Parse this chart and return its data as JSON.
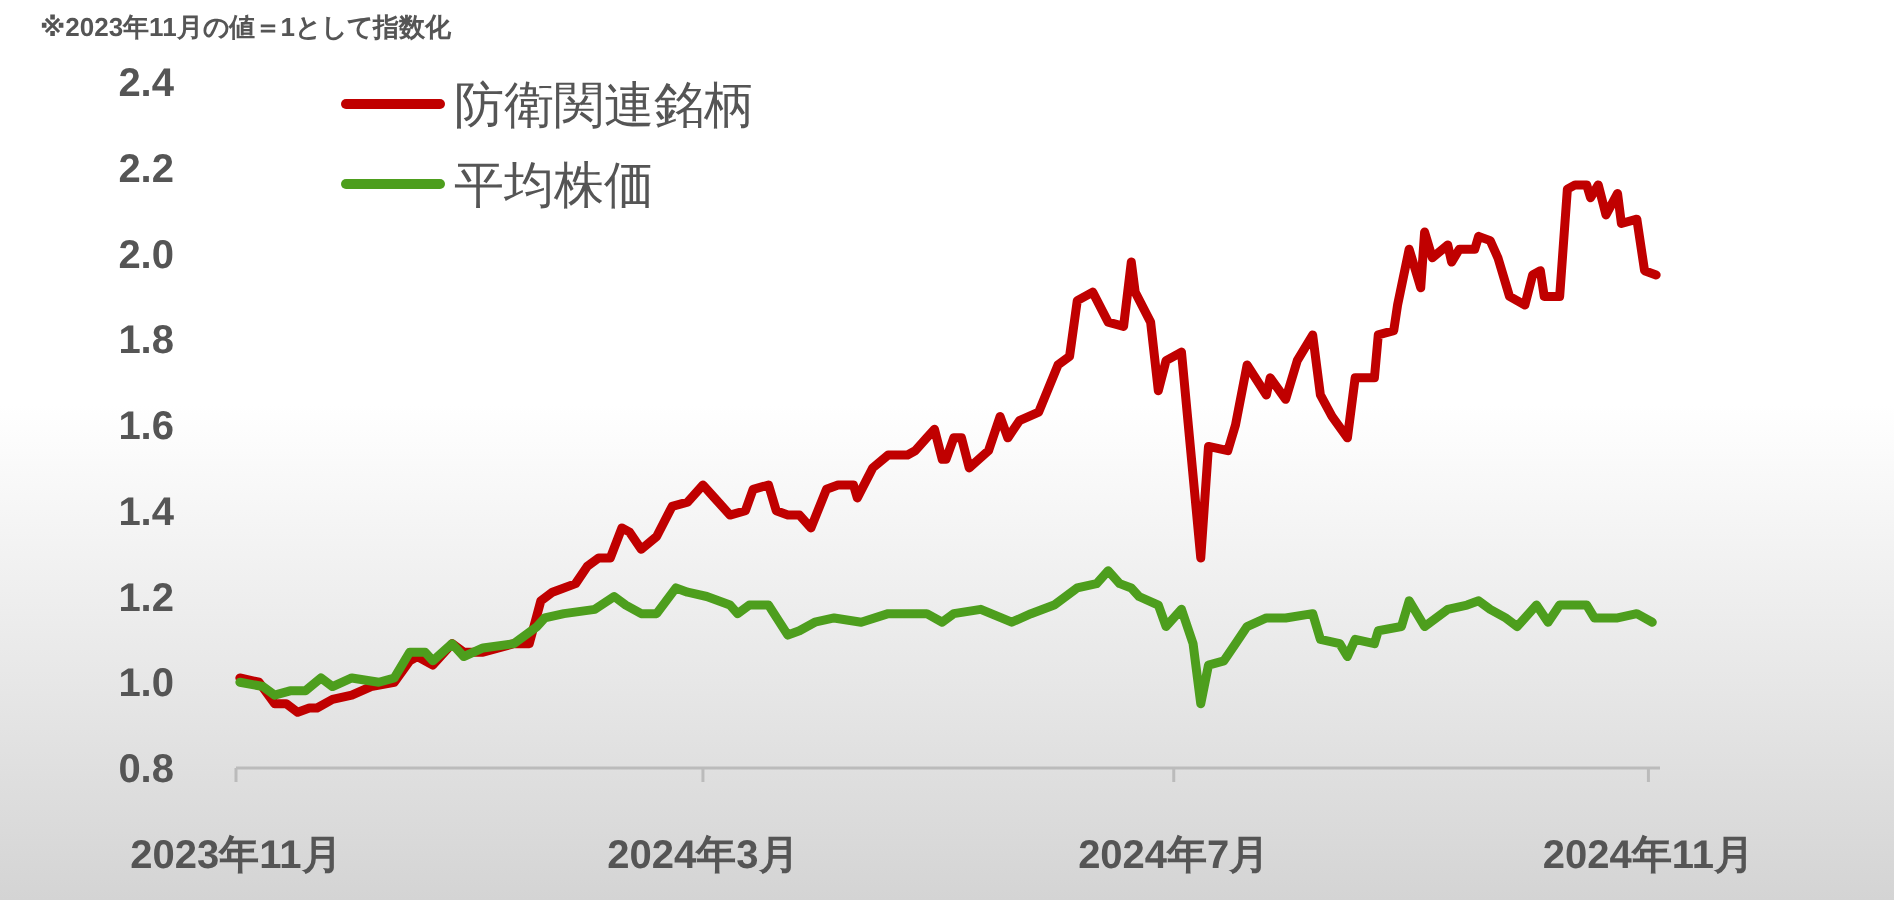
{
  "chart_data": {
    "type": "line",
    "annotations": [
      "※2023年11月の値＝1として指数化"
    ],
    "xlim": [
      "2023-11-01",
      "2024-11-04"
    ],
    "xticks": [
      {
        "value": "2023-11-01",
        "label": "2023年11月"
      },
      {
        "value": "2024-03-01",
        "label": "2024年3月"
      },
      {
        "value": "2024-07-01",
        "label": "2024年7月"
      },
      {
        "value": "2024-11-01",
        "label": "2024年11月"
      }
    ],
    "ylim": [
      0.8,
      2.4
    ],
    "yticks": [
      {
        "value": 0.8,
        "label": "0.8"
      },
      {
        "value": 1.0,
        "label": "1.0"
      },
      {
        "value": 1.2,
        "label": "1.2"
      },
      {
        "value": 1.4,
        "label": "1.4"
      },
      {
        "value": 1.6,
        "label": "1.6"
      },
      {
        "value": 1.8,
        "label": "1.8"
      },
      {
        "value": 2.0,
        "label": "2.0"
      },
      {
        "value": 2.2,
        "label": "2.2"
      },
      {
        "value": 2.4,
        "label": "2.4"
      }
    ],
    "legend": "top left",
    "series": [
      {
        "name": "防衛関連銘柄",
        "color": "#c00000",
        "x": [
          "2023-11-02",
          "2023-11-07",
          "2023-11-11",
          "2023-11-14",
          "2023-11-17",
          "2023-11-20",
          "2023-11-22",
          "2023-11-26",
          "2023-12-01",
          "2023-12-06",
          "2023-12-12",
          "2023-12-16",
          "2023-12-18",
          "2023-12-22",
          "2023-12-27",
          "2023-12-30",
          "2024-01-04",
          "2024-01-12",
          "2024-01-16",
          "2024-01-19",
          "2024-01-22",
          "2024-01-28",
          "2024-01-31",
          "2024-02-03",
          "2024-02-06",
          "2024-02-09",
          "2024-02-11",
          "2024-02-14",
          "2024-02-18",
          "2024-02-22",
          "2024-02-26",
          "2024-03-01",
          "2024-03-04",
          "2024-03-08",
          "2024-03-12",
          "2024-03-14",
          "2024-03-18",
          "2024-03-20",
          "2024-03-23",
          "2024-03-26",
          "2024-03-29",
          "2024-04-02",
          "2024-04-05",
          "2024-04-09",
          "2024-04-10",
          "2024-04-14",
          "2024-04-18",
          "2024-04-23",
          "2024-04-25",
          "2024-04-28",
          "2024-04-30",
          "2024-05-02",
          "2024-05-03",
          "2024-05-05",
          "2024-05-07",
          "2024-05-09",
          "2024-05-14",
          "2024-05-17",
          "2024-05-19",
          "2024-05-22",
          "2024-05-27",
          "2024-06-01",
          "2024-06-04",
          "2024-06-06",
          "2024-06-10",
          "2024-06-14",
          "2024-06-18",
          "2024-06-20",
          "2024-06-21",
          "2024-06-25",
          "2024-06-27",
          "2024-06-29",
          "2024-07-03",
          "2024-07-08",
          "2024-07-10",
          "2024-07-15",
          "2024-07-17",
          "2024-07-20",
          "2024-07-25",
          "2024-07-26",
          "2024-07-30",
          "2024-08-02",
          "2024-08-06",
          "2024-08-08",
          "2024-08-11",
          "2024-08-15",
          "2024-08-17",
          "2024-08-22",
          "2024-08-23",
          "2024-08-27",
          "2024-08-28",
          "2024-08-31",
          "2024-09-03",
          "2024-09-04",
          "2024-09-06",
          "2024-09-10",
          "2024-09-11",
          "2024-09-13",
          "2024-09-17",
          "2024-09-18",
          "2024-09-21",
          "2024-09-23",
          "2024-09-26",
          "2024-09-30",
          "2024-10-02",
          "2024-10-04",
          "2024-10-05",
          "2024-10-09",
          "2024-10-11",
          "2024-10-13",
          "2024-10-16",
          "2024-10-17",
          "2024-10-19",
          "2024-10-21",
          "2024-10-24",
          "2024-10-25",
          "2024-10-29",
          "2024-10-31",
          "2024-11-03"
        ],
        "values": [
          1.01,
          1.0,
          0.95,
          0.95,
          0.93,
          0.94,
          0.94,
          0.96,
          0.97,
          0.99,
          1.0,
          1.05,
          1.06,
          1.04,
          1.09,
          1.07,
          1.07,
          1.09,
          1.09,
          1.19,
          1.21,
          1.23,
          1.27,
          1.29,
          1.29,
          1.36,
          1.35,
          1.31,
          1.34,
          1.41,
          1.42,
          1.46,
          1.43,
          1.39,
          1.4,
          1.45,
          1.46,
          1.4,
          1.39,
          1.39,
          1.36,
          1.45,
          1.46,
          1.46,
          1.43,
          1.5,
          1.53,
          1.53,
          1.54,
          1.57,
          1.59,
          1.52,
          1.52,
          1.57,
          1.57,
          1.5,
          1.54,
          1.62,
          1.57,
          1.61,
          1.63,
          1.74,
          1.76,
          1.89,
          1.91,
          1.84,
          1.83,
          1.98,
          1.91,
          1.84,
          1.68,
          1.75,
          1.77,
          1.29,
          1.55,
          1.54,
          1.6,
          1.74,
          1.67,
          1.71,
          1.66,
          1.75,
          1.81,
          1.67,
          1.62,
          1.57,
          1.71,
          1.71,
          1.81,
          1.82,
          1.88,
          2.01,
          1.92,
          2.05,
          1.99,
          2.02,
          1.98,
          2.01,
          2.01,
          2.04,
          2.03,
          1.99,
          1.9,
          1.88,
          1.95,
          1.96,
          1.9,
          1.9,
          2.15,
          2.16,
          2.16,
          2.13,
          2.16,
          2.09,
          2.14,
          2.07,
          2.08,
          1.96,
          1.95
        ]
      },
      {
        "name": "平均株価",
        "color": "#4d9e1d",
        "x": [
          "2023-11-02",
          "2023-11-08",
          "2023-11-11",
          "2023-11-15",
          "2023-11-19",
          "2023-11-23",
          "2023-11-26",
          "2023-12-01",
          "2023-12-08",
          "2023-12-12",
          "2023-12-16",
          "2023-12-20",
          "2023-12-22",
          "2023-12-27",
          "2023-12-30",
          "2024-01-04",
          "2024-01-12",
          "2024-01-15",
          "2024-01-18",
          "2024-01-20",
          "2024-01-25",
          "2024-02-02",
          "2024-02-07",
          "2024-02-10",
          "2024-02-14",
          "2024-02-18",
          "2024-02-23",
          "2024-02-26",
          "2024-03-02",
          "2024-03-08",
          "2024-03-10",
          "2024-03-13",
          "2024-03-18",
          "2024-03-23",
          "2024-03-26",
          "2024-03-30",
          "2024-04-04",
          "2024-04-11",
          "2024-04-18",
          "2024-04-23",
          "2024-04-28",
          "2024-05-02",
          "2024-05-05",
          "2024-05-12",
          "2024-05-20",
          "2024-05-25",
          "2024-05-31",
          "2024-06-06",
          "2024-06-11",
          "2024-06-14",
          "2024-06-17",
          "2024-06-20",
          "2024-06-22",
          "2024-06-27",
          "2024-06-29",
          "2024-07-03",
          "2024-07-06",
          "2024-07-08",
          "2024-07-10",
          "2024-07-14",
          "2024-07-17",
          "2024-07-20",
          "2024-07-25",
          "2024-07-30",
          "2024-08-06",
          "2024-08-08",
          "2024-08-13",
          "2024-08-15",
          "2024-08-17",
          "2024-08-22",
          "2024-08-23",
          "2024-08-29",
          "2024-08-31",
          "2024-09-04",
          "2024-09-10",
          "2024-09-15",
          "2024-09-18",
          "2024-09-21",
          "2024-09-25",
          "2024-09-28",
          "2024-10-03",
          "2024-10-06",
          "2024-10-09",
          "2024-10-16",
          "2024-10-18",
          "2024-10-24",
          "2024-10-29",
          "2024-11-02"
        ],
        "values": [
          1.0,
          0.99,
          0.97,
          0.98,
          0.98,
          1.01,
          0.99,
          1.01,
          1.0,
          1.01,
          1.07,
          1.07,
          1.05,
          1.09,
          1.06,
          1.08,
          1.09,
          1.11,
          1.13,
          1.15,
          1.16,
          1.17,
          1.2,
          1.18,
          1.16,
          1.16,
          1.22,
          1.21,
          1.2,
          1.18,
          1.16,
          1.18,
          1.18,
          1.11,
          1.12,
          1.14,
          1.15,
          1.14,
          1.16,
          1.16,
          1.16,
          1.14,
          1.16,
          1.17,
          1.14,
          1.16,
          1.18,
          1.22,
          1.23,
          1.26,
          1.23,
          1.22,
          1.2,
          1.18,
          1.13,
          1.17,
          1.09,
          0.95,
          1.04,
          1.05,
          1.09,
          1.13,
          1.15,
          1.15,
          1.16,
          1.1,
          1.09,
          1.06,
          1.1,
          1.09,
          1.12,
          1.13,
          1.19,
          1.13,
          1.17,
          1.18,
          1.19,
          1.17,
          1.15,
          1.13,
          1.18,
          1.14,
          1.18,
          1.18,
          1.15,
          1.15,
          1.16,
          1.14
        ]
      }
    ]
  }
}
